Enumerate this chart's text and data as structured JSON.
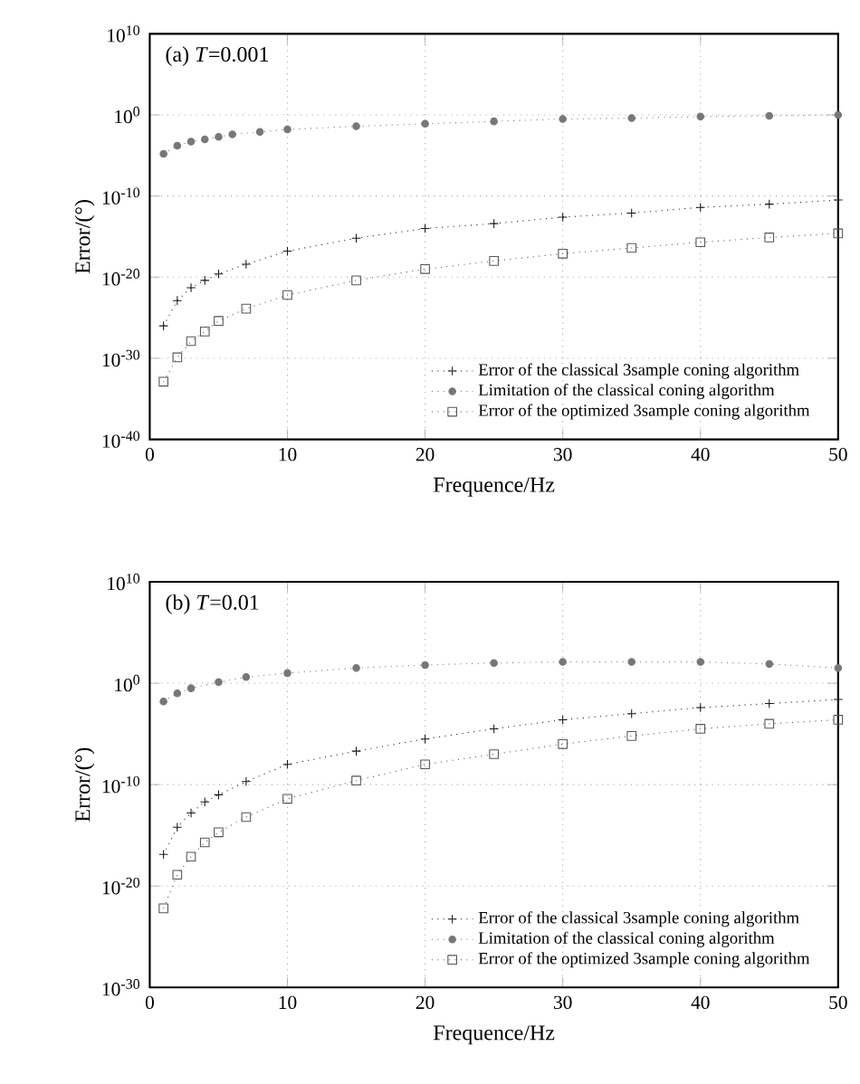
{
  "chart_data": [
    {
      "type": "line",
      "xlabel": "Frequence/Hz",
      "ylabel": "Error/(°)",
      "annotations": [
        "(a) *T*=0.001"
      ],
      "log": "y",
      "grid": true,
      "legend": "bottom right",
      "xlim": [
        0,
        50
      ],
      "xticks": [
        0,
        10,
        20,
        30,
        40,
        50
      ],
      "ylim": [
        1e-40,
        10000000000.0
      ],
      "yticks": [
        {
          "value": 1e-40,
          "label": "10$^{-40}$"
        },
        {
          "value": 1e-30,
          "label": "10$^{-30}$"
        },
        {
          "value": 1e-20,
          "label": "10$^{-20}$"
        },
        {
          "value": 1e-10,
          "label": "10$^{-10}$"
        },
        {
          "value": 1,
          "label": "10$^{0}$"
        },
        {
          "value": 10000000000.0,
          "label": "10$^{10}$"
        }
      ],
      "series": [
        {
          "name": "Error of the classical 3sample coning algorithm",
          "color": "#1a1a1a",
          "marker": "cross",
          "line_style": "dotted",
          "x": [
            1,
            2,
            3,
            4,
            5,
            7,
            10,
            15,
            20,
            25,
            30,
            35,
            40,
            45,
            50
          ],
          "values": [
            1e-26,
            1.3e-23,
            5e-22,
            4e-21,
            2.5e-20,
            4e-19,
            1.6e-17,
            6.3e-16,
            1e-14,
            4e-14,
            2.5e-13,
            8e-13,
            4e-12,
            1e-11,
            3.2e-11
          ]
        },
        {
          "name": "Limitation of the classical coning algorithm",
          "color": "#777777",
          "marker": "circle",
          "line_style": "dotted",
          "x": [
            1,
            2,
            3,
            4,
            5,
            6,
            8,
            10,
            15,
            20,
            25,
            30,
            35,
            40,
            45,
            50
          ],
          "values": [
            1.6e-05,
            0.00016,
            0.0005,
            0.001,
            0.002,
            0.004,
            0.008,
            0.016,
            0.04,
            0.08,
            0.16,
            0.32,
            0.4,
            0.63,
            0.79,
            1
          ]
        },
        {
          "name": "Error of the optimized 3sample coning algorithm",
          "color": "#555555",
          "marker": "square",
          "line_style": "dotted",
          "x": [
            1,
            2,
            3,
            4,
            5,
            7,
            10,
            15,
            20,
            25,
            30,
            35,
            40,
            45,
            50
          ],
          "values": [
            1.3e-33,
            1.3e-30,
            1.3e-28,
            2e-27,
            4e-26,
            1.3e-24,
            6.3e-23,
            4e-21,
            1e-19,
            1e-18,
            7.9e-18,
            4e-17,
            2e-16,
            7.9e-16,
            2.5e-15
          ]
        }
      ]
    },
    {
      "type": "line",
      "xlabel": "Frequence/Hz",
      "ylabel": "Error/(°)",
      "annotations": [
        "(b) *T*=0.01"
      ],
      "log": "y",
      "grid": true,
      "legend": "bottom right",
      "xlim": [
        0,
        50
      ],
      "xticks": [
        0,
        10,
        20,
        30,
        40,
        50
      ],
      "ylim": [
        1e-30,
        10000000000.0
      ],
      "yticks": [
        {
          "value": 1e-30,
          "label": "10$^{-30}$"
        },
        {
          "value": 1e-20,
          "label": "10$^{-20}$"
        },
        {
          "value": 1e-10,
          "label": "10$^{-10}$"
        },
        {
          "value": 1,
          "label": "10$^{0}$"
        },
        {
          "value": 10000000000.0,
          "label": "10$^{10}$"
        }
      ],
      "series": [
        {
          "name": "Error of the classical 3sample coning algorithm",
          "color": "#1a1a1a",
          "marker": "cross",
          "line_style": "dotted",
          "x": [
            1,
            2,
            3,
            4,
            5,
            7,
            10,
            15,
            20,
            25,
            30,
            35,
            40,
            45,
            50
          ],
          "values": [
            1.3e-17,
            6.3e-15,
            1.6e-13,
            2e-12,
            1e-11,
            2e-10,
            1e-08,
            2e-07,
            3.2e-06,
            3.2e-05,
            0.00025,
            0.001,
            0.004,
            0.01,
            0.025
          ]
        },
        {
          "name": "Limitation of the classical coning algorithm",
          "color": "#777777",
          "marker": "circle",
          "line_style": "dotted",
          "x": [
            1,
            2,
            3,
            5,
            7,
            10,
            15,
            20,
            25,
            30,
            35,
            40,
            45,
            50
          ],
          "values": [
            0.016,
            0.1,
            0.32,
            1.3,
            4,
            10,
            32,
            63,
            100,
            126,
            126,
            126,
            79,
            32
          ]
        },
        {
          "name": "Error of the optimized 3sample coning algorithm",
          "color": "#555555",
          "marker": "square",
          "line_style": "dotted",
          "x": [
            1,
            2,
            3,
            4,
            5,
            7,
            10,
            15,
            20,
            25,
            30,
            35,
            40,
            45,
            50
          ],
          "values": [
            6.3e-23,
            1.3e-19,
            7.9e-18,
            2e-16,
            2e-15,
            6.3e-14,
            4e-12,
            2.5e-10,
            1e-08,
            1e-07,
            1e-06,
            6.3e-06,
            3.2e-05,
            0.0001,
            0.00025
          ]
        }
      ]
    }
  ]
}
